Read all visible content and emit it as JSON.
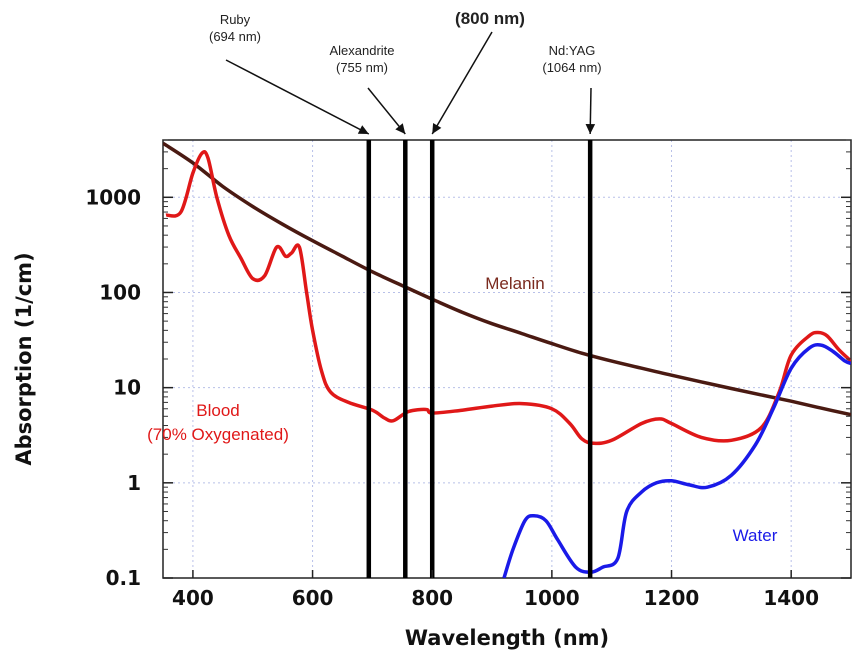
{
  "chart_data": {
    "type": "line",
    "title": "",
    "xlabel": "Wavelength (nm)",
    "ylabel": "Absorption (1/cm)",
    "xlim": [
      350,
      1500
    ],
    "ylim": [
      0.1,
      4000
    ],
    "y_scale": "log",
    "grid": true,
    "x_ticks": [
      {
        "value": 400,
        "label": "400"
      },
      {
        "value": 600,
        "label": "600"
      },
      {
        "value": 800,
        "label": "800"
      },
      {
        "value": 1000,
        "label": "1000"
      },
      {
        "value": 1200,
        "label": "1200"
      },
      {
        "value": 1400,
        "label": "1400"
      }
    ],
    "y_ticks": [
      {
        "value": 1000,
        "label": "1000"
      },
      {
        "value": 100,
        "label": "100"
      },
      {
        "value": 10,
        "label": "10"
      },
      {
        "value": 1,
        "label": "1"
      },
      {
        "value": 0.1,
        "label": "0.1"
      }
    ],
    "series": [
      {
        "name": "Melanin",
        "color": "#4a1a12",
        "points": [
          [
            350,
            3700
          ],
          [
            400,
            2300
          ],
          [
            450,
            1300
          ],
          [
            500,
            800
          ],
          [
            550,
            520
          ],
          [
            600,
            350
          ],
          [
            650,
            240
          ],
          [
            700,
            165
          ],
          [
            750,
            118
          ],
          [
            800,
            85
          ],
          [
            850,
            62
          ],
          [
            900,
            47
          ],
          [
            950,
            37
          ],
          [
            1000,
            29
          ],
          [
            1050,
            23
          ],
          [
            1100,
            19
          ],
          [
            1150,
            16
          ],
          [
            1200,
            13.5
          ],
          [
            1250,
            11.5
          ],
          [
            1300,
            9.8
          ],
          [
            1350,
            8.4
          ],
          [
            1400,
            7.2
          ],
          [
            1450,
            6.1
          ],
          [
            1500,
            5.2
          ]
        ]
      },
      {
        "name": "Blood (70% Oxygenated)",
        "color": "#e01818",
        "points": [
          [
            355,
            650
          ],
          [
            380,
            700
          ],
          [
            400,
            1800
          ],
          [
            415,
            2900
          ],
          [
            425,
            2600
          ],
          [
            440,
            1000
          ],
          [
            460,
            400
          ],
          [
            480,
            230
          ],
          [
            500,
            140
          ],
          [
            520,
            150
          ],
          [
            540,
            300
          ],
          [
            555,
            240
          ],
          [
            565,
            260
          ],
          [
            578,
            300
          ],
          [
            590,
            100
          ],
          [
            600,
            40
          ],
          [
            615,
            15
          ],
          [
            630,
            9
          ],
          [
            660,
            7
          ],
          [
            700,
            5.8
          ],
          [
            720,
            4.8
          ],
          [
            735,
            4.5
          ],
          [
            760,
            5.6
          ],
          [
            790,
            5.9
          ],
          [
            800,
            5.4
          ],
          [
            850,
            5.8
          ],
          [
            900,
            6.4
          ],
          [
            950,
            6.8
          ],
          [
            1000,
            6.0
          ],
          [
            1030,
            4.2
          ],
          [
            1050,
            2.9
          ],
          [
            1070,
            2.6
          ],
          [
            1100,
            2.8
          ],
          [
            1150,
            4.2
          ],
          [
            1180,
            4.7
          ],
          [
            1200,
            4.2
          ],
          [
            1250,
            3.0
          ],
          [
            1300,
            2.8
          ],
          [
            1350,
            3.8
          ],
          [
            1380,
            9
          ],
          [
            1400,
            22
          ],
          [
            1430,
            35
          ],
          [
            1445,
            38
          ],
          [
            1460,
            35
          ],
          [
            1480,
            25
          ],
          [
            1500,
            19
          ]
        ]
      },
      {
        "name": "Water",
        "color": "#1a1ae8",
        "points": [
          [
            920,
            0.1
          ],
          [
            935,
            0.2
          ],
          [
            955,
            0.4
          ],
          [
            970,
            0.45
          ],
          [
            990,
            0.4
          ],
          [
            1010,
            0.25
          ],
          [
            1040,
            0.13
          ],
          [
            1065,
            0.115
          ],
          [
            1085,
            0.13
          ],
          [
            1110,
            0.16
          ],
          [
            1125,
            0.5
          ],
          [
            1150,
            0.8
          ],
          [
            1175,
            1.0
          ],
          [
            1200,
            1.05
          ],
          [
            1230,
            0.95
          ],
          [
            1260,
            0.9
          ],
          [
            1300,
            1.2
          ],
          [
            1340,
            2.5
          ],
          [
            1370,
            6
          ],
          [
            1400,
            16
          ],
          [
            1430,
            26
          ],
          [
            1450,
            28
          ],
          [
            1470,
            24
          ],
          [
            1490,
            19
          ],
          [
            1500,
            18
          ]
        ]
      }
    ],
    "series_labels": [
      {
        "lines": [
          "Melanin"
        ],
        "color": "#7a2a1e"
      },
      {
        "lines": [
          "Blood",
          "(70% Oxygenated)"
        ],
        "color": "#e01818"
      },
      {
        "lines": [
          "Water"
        ],
        "color": "#1a1ae8"
      }
    ],
    "laser_lines": [
      {
        "wavelength": 694,
        "label_lines": [
          "Ruby",
          "(694 nm)"
        ]
      },
      {
        "wavelength": 755,
        "label_lines": [
          "Alexandrite",
          "(755 nm)"
        ]
      },
      {
        "wavelength": 800,
        "label_lines": [
          "(800 nm)"
        ]
      },
      {
        "wavelength": 1064,
        "label_lines": [
          "Nd:YAG",
          "(1064 nm)"
        ]
      }
    ]
  }
}
